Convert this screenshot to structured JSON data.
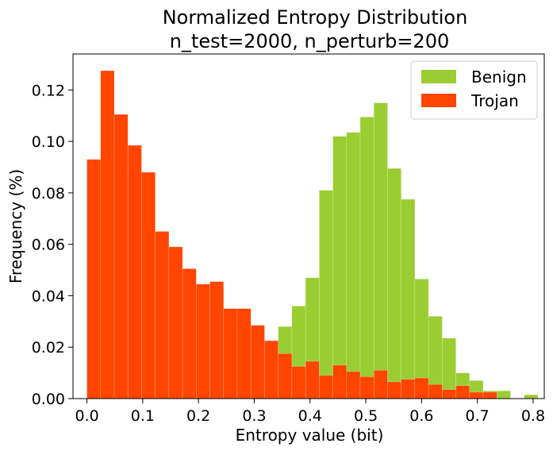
{
  "chart_data": {
    "type": "bar",
    "title_lines": [
      "Normalized Entropy Distribution",
      "n_test=2000, n_perturb=200"
    ],
    "xlabel": "Entropy value (bit)",
    "ylabel": "Frequency (%)",
    "xlim": [
      -0.025,
      0.82
    ],
    "ylim": [
      0,
      0.134
    ],
    "xticks": [
      "0.0",
      "0.1",
      "0.2",
      "0.3",
      "0.4",
      "0.5",
      "0.6",
      "0.7",
      "0.8"
    ],
    "yticks": [
      "0.00",
      "0.02",
      "0.04",
      "0.06",
      "0.08",
      "0.10",
      "0.12"
    ],
    "bin_width": 0.0245,
    "legend": {
      "position": "top-right"
    },
    "series": [
      {
        "name": "Benign",
        "color": "#9acd32",
        "bins": [
          {
            "x": 0.3185,
            "y": 0.02
          },
          {
            "x": 0.343,
            "y": 0.028
          },
          {
            "x": 0.3675,
            "y": 0.036
          },
          {
            "x": 0.392,
            "y": 0.047
          },
          {
            "x": 0.4165,
            "y": 0.081
          },
          {
            "x": 0.441,
            "y": 0.102
          },
          {
            "x": 0.4655,
            "y": 0.1035
          },
          {
            "x": 0.49,
            "y": 0.1095
          },
          {
            "x": 0.5145,
            "y": 0.115
          },
          {
            "x": 0.539,
            "y": 0.0895
          },
          {
            "x": 0.5635,
            "y": 0.0775
          },
          {
            "x": 0.588,
            "y": 0.0465
          },
          {
            "x": 0.6125,
            "y": 0.032
          },
          {
            "x": 0.637,
            "y": 0.0235
          },
          {
            "x": 0.6615,
            "y": 0.01
          },
          {
            "x": 0.686,
            "y": 0.007
          },
          {
            "x": 0.7105,
            "y": 0.003
          },
          {
            "x": 0.735,
            "y": 0.003
          },
          {
            "x": 0.784,
            "y": 0.0015
          }
        ]
      },
      {
        "name": "Trojan",
        "color": "#ff4500",
        "bins": [
          {
            "x": 0.0,
            "y": 0.093
          },
          {
            "x": 0.0245,
            "y": 0.1275
          },
          {
            "x": 0.049,
            "y": 0.1105
          },
          {
            "x": 0.0735,
            "y": 0.0985
          },
          {
            "x": 0.098,
            "y": 0.088
          },
          {
            "x": 0.1225,
            "y": 0.065
          },
          {
            "x": 0.147,
            "y": 0.059
          },
          {
            "x": 0.1715,
            "y": 0.0505
          },
          {
            "x": 0.196,
            "y": 0.0445
          },
          {
            "x": 0.2205,
            "y": 0.0455
          },
          {
            "x": 0.245,
            "y": 0.035
          },
          {
            "x": 0.2695,
            "y": 0.035
          },
          {
            "x": 0.294,
            "y": 0.0285
          },
          {
            "x": 0.3185,
            "y": 0.0225
          },
          {
            "x": 0.343,
            "y": 0.0175
          },
          {
            "x": 0.3675,
            "y": 0.0125
          },
          {
            "x": 0.392,
            "y": 0.0145
          },
          {
            "x": 0.4165,
            "y": 0.009
          },
          {
            "x": 0.441,
            "y": 0.013
          },
          {
            "x": 0.4655,
            "y": 0.0105
          },
          {
            "x": 0.49,
            "y": 0.0085
          },
          {
            "x": 0.5145,
            "y": 0.011
          },
          {
            "x": 0.539,
            "y": 0.0065
          },
          {
            "x": 0.5635,
            "y": 0.0075
          },
          {
            "x": 0.588,
            "y": 0.008
          },
          {
            "x": 0.6125,
            "y": 0.0055
          },
          {
            "x": 0.637,
            "y": 0.0035
          },
          {
            "x": 0.6615,
            "y": 0.005
          },
          {
            "x": 0.686,
            "y": 0.0025
          },
          {
            "x": 0.7105,
            "y": 0.0025
          }
        ]
      }
    ]
  }
}
